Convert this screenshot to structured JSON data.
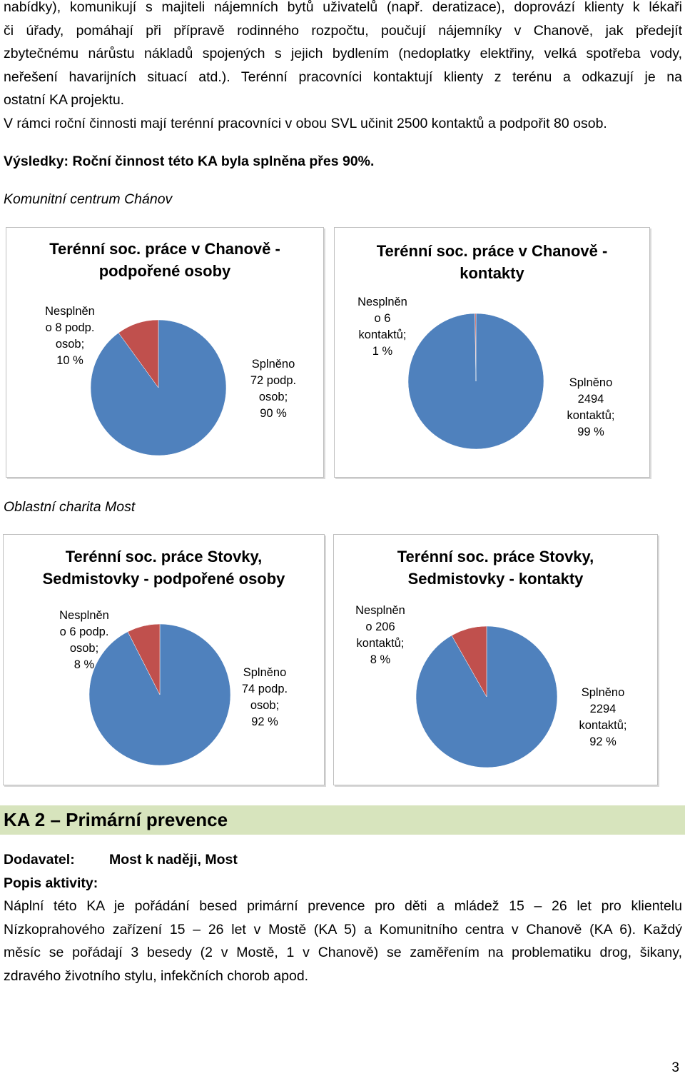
{
  "intro": {
    "lines": [
      "nabídky), komunikují s majiteli nájemních bytů uživatelů (např. deratizace), doprovází klienty k lékaři",
      "či úřady, pomáhají při přípravě rodinného rozpočtu, poučují nájemníky v Chanově, jak předejít",
      "zbytečnému nárůstu nákladů spojených s jejich bydlením (nedoplatky elektřiny, velká spotřeba vody,",
      "neřešení havarijních situací atd.). Terénní pracovníci kontaktují klienty z terénu a odkazují je na",
      "ostatní KA projektu."
    ],
    "target_sentence": "V rámci roční činnosti mají terénní pracovníci v obou SVL učinit 2500 kontaktů a podpořit 80 osob.",
    "results": "Výsledky: Roční činnost této KA byla splněna přes 90%."
  },
  "section1_title": "Komunitní centrum Chánov",
  "section2_title": "Oblastní charita Most",
  "chart_data": [
    {
      "type": "pie",
      "title_lines": [
        "Terénní soc. práce  v Chanově -",
        "podpořené osoby"
      ],
      "slices": [
        {
          "label_lines": [
            "Nesplněn",
            "o 8 podp.",
            "osob;",
            "10 %"
          ],
          "value": 8,
          "percent": 10,
          "color": "#c0504d"
        },
        {
          "label_lines": [
            "Splněno",
            "72 podp.",
            "osob;",
            "90 %"
          ],
          "value": 72,
          "percent": 90,
          "color": "#4f81bd"
        }
      ]
    },
    {
      "type": "pie",
      "title_lines": [
        "Terénní soc. práce v Chanově -",
        "kontakty"
      ],
      "slices": [
        {
          "label_lines": [
            "Nesplněn",
            "o 6",
            "kontaktů;",
            "1 %"
          ],
          "value": 6,
          "percent": 1,
          "color": "#c0504d"
        },
        {
          "label_lines": [
            "Splněno",
            "2494",
            "kontaktů;",
            "99 %"
          ],
          "value": 2494,
          "percent": 99,
          "color": "#4f81bd"
        }
      ]
    },
    {
      "type": "pie",
      "title_lines": [
        "Terénní soc. práce  Stovky,",
        "Sedmistovky - podpořené osoby"
      ],
      "slices": [
        {
          "label_lines": [
            "Nesplněn",
            "o 6 podp.",
            "osob;",
            "8 %"
          ],
          "value": 6,
          "percent": 8,
          "color": "#c0504d"
        },
        {
          "label_lines": [
            "Splněno",
            "74 podp.",
            "osob;",
            "92 %"
          ],
          "value": 74,
          "percent": 92,
          "color": "#4f81bd"
        }
      ]
    },
    {
      "type": "pie",
      "title_lines": [
        "Terénní soc. práce Stovky,",
        "Sedmistovky - kontakty"
      ],
      "slices": [
        {
          "label_lines": [
            "Nesplněn",
            "o 206",
            "kontaktů;",
            "8 %"
          ],
          "value": 206,
          "percent": 8,
          "color": "#c0504d"
        },
        {
          "label_lines": [
            "Splněno",
            "2294",
            "kontaktů;",
            "92 %"
          ],
          "value": 2294,
          "percent": 92,
          "color": "#4f81bd"
        }
      ]
    }
  ],
  "ka2": {
    "heading": "KA 2 – Primární prevence",
    "supplier_label": "Dodavatel:",
    "supplier_value": "Most k naději, Most",
    "activity_label": "Popis aktivity:",
    "description_lines": [
      "Náplní této KA je pořádání besed primární prevence pro děti a mládež 15 – 26 let pro klientelu",
      "Nízkoprahového zařízení 15 – 26 let v Mostě (KA 5) a Komunitního centra v Chanově (KA 6). Každý",
      "měsíc se pořádají 3 besedy (2 v Mostě, 1 v Chanově) se zaměřením na problematiku drog, šikany,",
      "zdravého životního stylu, infekčních chorob apod."
    ]
  },
  "page_number": "3"
}
